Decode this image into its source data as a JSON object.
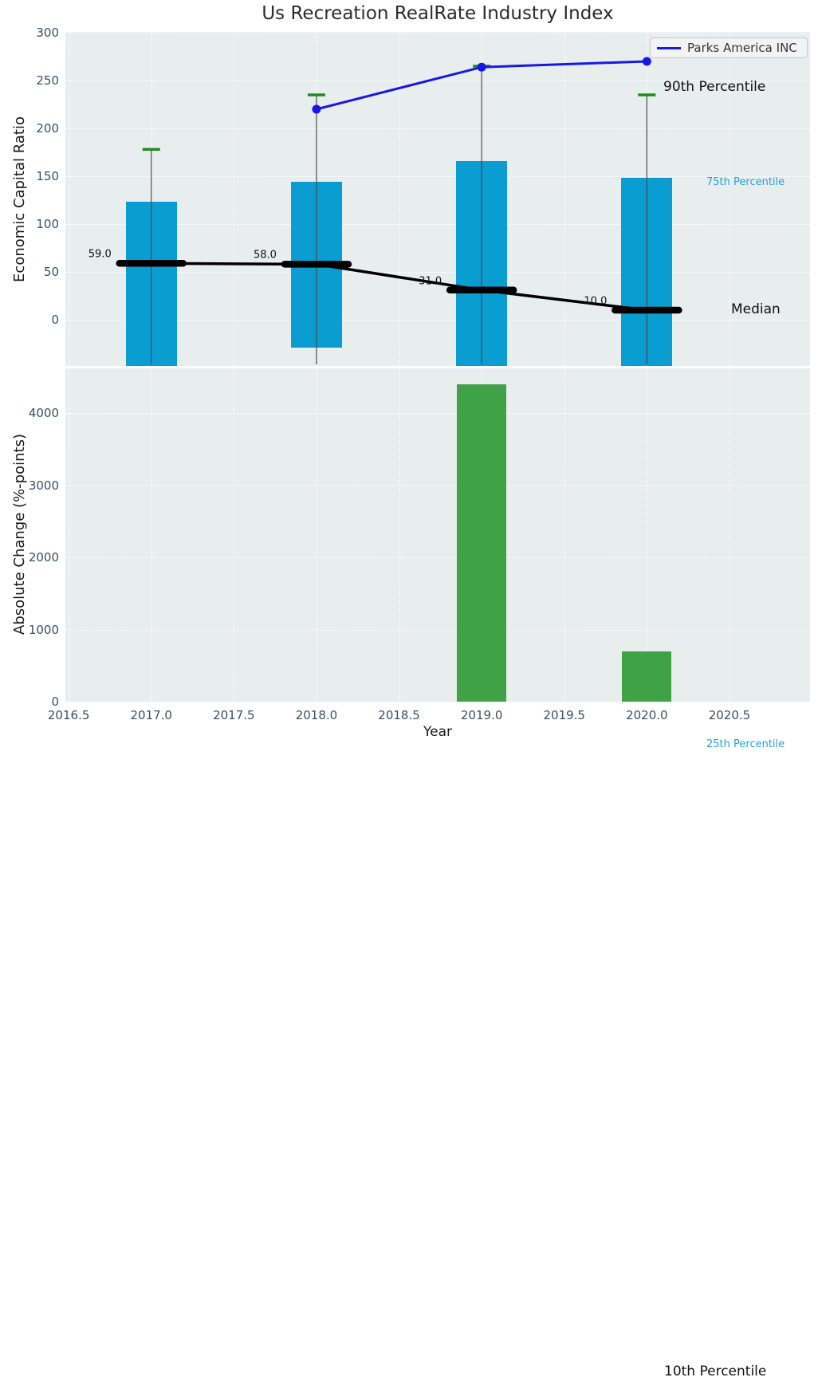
{
  "title": "Us Recreation RealRate Industry Index",
  "legend": {
    "label": "Parks America INC",
    "line_color": "#1717e8"
  },
  "annotations": {
    "p90": "90th Percentile",
    "p75": "75th Percentile",
    "median": "Median",
    "p25": "25th Percentile",
    "p10": "10th Percentile"
  },
  "colors": {
    "axes_bg": "#e8edee",
    "box_cyan": "#0a9dd1",
    "bar_green": "#3fa245",
    "cap_green": "#1f8b1f",
    "company_blue": "#1717e8",
    "median_black": "#000000",
    "percentile_cyan": "#1fa3da",
    "tick_label": "#3c4e63"
  },
  "chart_data": [
    {
      "type": "bar",
      "subplot": "top",
      "title": "Us Recreation RealRate Industry Index",
      "ylabel": "Economic Capital Ratio",
      "ylim": [
        -48,
        301
      ],
      "yticks": [
        0,
        50,
        100,
        150,
        200,
        250,
        300
      ],
      "grid": true,
      "legend_position": "upper right",
      "categories": [
        2017,
        2018,
        2019,
        2020
      ],
      "series": [
        {
          "name": "75th Percentile (box top)",
          "values": [
            123,
            144,
            166,
            148
          ]
        },
        {
          "name": "25th Percentile (box bottom, extends below axis)",
          "values": [
            -55,
            -29,
            -55,
            -55
          ]
        },
        {
          "name": "90th Percentile (whisker cap)",
          "values": [
            178,
            235,
            265,
            235
          ]
        },
        {
          "name": "Median",
          "values": [
            59,
            58,
            31,
            10
          ]
        }
      ],
      "median_labels": [
        "59.0",
        "58.0",
        "31.0",
        "10.0"
      ],
      "company_line": {
        "name": "Parks America INC",
        "x": [
          2018,
          2019,
          2020
        ],
        "values": [
          220,
          264,
          270
        ]
      }
    },
    {
      "type": "bar",
      "subplot": "bottom",
      "ylabel": "Absolute Change (%-points)",
      "xlabel": "Year",
      "ylim": [
        0,
        4620
      ],
      "yticks": [
        0,
        1000,
        2000,
        3000,
        4000
      ],
      "xtick_labels": [
        "2016.5",
        "2017.0",
        "2017.5",
        "2018.0",
        "2018.5",
        "2019.0",
        "2019.5",
        "2020.0",
        "2020.5"
      ],
      "grid": true,
      "x": [
        2019,
        2020
      ],
      "values": [
        4400,
        700
      ]
    }
  ]
}
